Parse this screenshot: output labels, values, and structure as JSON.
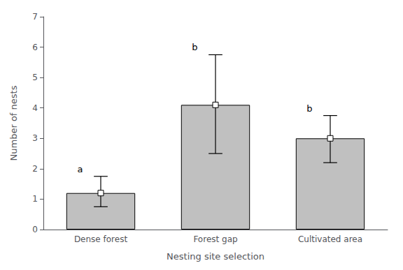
{
  "chart_data": {
    "type": "bar",
    "categories": [
      "Dense forest",
      "Forest gap",
      "Cultivated area"
    ],
    "values": [
      1.2,
      4.1,
      3.0
    ],
    "error_lower": [
      0.45,
      1.6,
      0.8
    ],
    "error_upper": [
      0.55,
      1.65,
      0.75
    ],
    "annotations": [
      "a",
      "b",
      "b"
    ],
    "color": "#c0c0c0",
    "marker": "square",
    "xlabel": "Nesting site selection",
    "ylabel": "Number of nests",
    "ylim": [
      0,
      7
    ],
    "yticks": [
      0,
      1,
      2,
      3,
      4,
      5,
      6,
      7
    ],
    "grid": false
  }
}
